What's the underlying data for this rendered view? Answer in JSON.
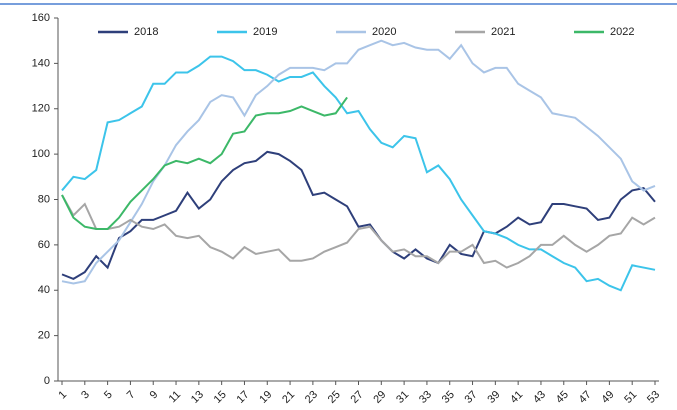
{
  "chart_data": {
    "type": "line",
    "x": [
      1,
      2,
      3,
      4,
      5,
      6,
      7,
      8,
      9,
      10,
      11,
      12,
      13,
      14,
      15,
      16,
      17,
      18,
      19,
      20,
      21,
      22,
      23,
      24,
      25,
      26,
      27,
      28,
      29,
      30,
      31,
      32,
      33,
      34,
      35,
      36,
      37,
      38,
      39,
      40,
      41,
      42,
      43,
      44,
      45,
      46,
      47,
      48,
      49,
      50,
      51,
      52,
      53
    ],
    "xlim": [
      1,
      53
    ],
    "xticks": [
      1,
      3,
      5,
      7,
      9,
      11,
      13,
      15,
      17,
      19,
      21,
      23,
      25,
      27,
      29,
      31,
      33,
      35,
      37,
      39,
      41,
      43,
      45,
      47,
      49,
      51,
      53
    ],
    "ylim": [
      0,
      160
    ],
    "yticks": [
      0,
      20,
      40,
      60,
      80,
      100,
      120,
      140,
      160
    ],
    "legend": "top",
    "series": [
      {
        "name": "2018",
        "color": "#2e3f7a",
        "values": [
          47,
          45,
          48,
          55,
          50,
          63,
          66,
          71,
          71,
          73,
          75,
          83,
          76,
          80,
          88,
          93,
          96,
          97,
          101,
          100,
          97,
          93,
          82,
          83,
          80,
          77,
          68,
          69,
          62,
          57,
          54,
          58,
          54,
          52,
          60,
          56,
          55,
          66,
          65,
          68,
          72,
          69,
          70,
          78,
          78,
          77,
          76,
          71,
          72,
          80,
          84,
          85,
          79
        ]
      },
      {
        "name": "2019",
        "color": "#3cc4ea",
        "values": [
          84,
          90,
          89,
          93,
          114,
          115,
          118,
          121,
          131,
          131,
          136,
          136,
          139,
          143,
          143,
          141,
          137,
          137,
          135,
          132,
          134,
          134,
          136,
          130,
          125,
          118,
          119,
          111,
          105,
          103,
          108,
          107,
          92,
          95,
          89,
          80,
          73,
          66,
          65,
          63,
          60,
          58,
          58,
          55,
          52,
          50,
          44,
          45,
          42,
          40,
          51,
          50,
          49
        ]
      },
      {
        "name": "2020",
        "color": "#a9c4e6",
        "values": [
          44,
          43,
          44,
          52,
          57,
          62,
          70,
          78,
          88,
          95,
          104,
          110,
          115,
          123,
          126,
          125,
          117,
          126,
          130,
          135,
          138,
          138,
          138,
          137,
          140,
          140,
          146,
          148,
          150,
          148,
          149,
          147,
          146,
          146,
          142,
          148,
          140,
          136,
          138,
          138,
          131,
          128,
          125,
          118,
          117,
          116,
          112,
          108,
          103,
          98,
          88,
          84,
          86
        ]
      },
      {
        "name": "2021",
        "color": "#a6a6a6",
        "values": [
          82,
          73,
          78,
          67,
          67,
          68,
          71,
          68,
          67,
          69,
          64,
          63,
          64,
          59,
          57,
          54,
          59,
          56,
          57,
          58,
          53,
          53,
          54,
          57,
          59,
          61,
          67,
          68,
          62,
          57,
          58,
          55,
          55,
          52,
          57,
          57,
          60,
          52,
          53,
          50,
          52,
          55,
          60,
          60,
          64,
          60,
          57,
          60,
          64,
          65,
          72,
          69,
          72
        ]
      },
      {
        "name": "2022",
        "color": "#3cb868",
        "values": [
          82,
          72,
          68,
          67,
          67,
          72,
          79,
          84,
          89,
          95,
          97,
          96,
          98,
          96,
          100,
          109,
          110,
          117,
          118,
          118,
          119,
          121,
          119,
          117,
          118,
          125,
          null,
          null,
          null,
          null,
          null,
          null,
          null,
          null,
          null,
          null,
          null,
          null,
          null,
          null,
          null,
          null,
          null,
          null,
          null,
          null,
          null,
          null,
          null,
          null,
          null,
          null,
          null
        ]
      }
    ]
  }
}
